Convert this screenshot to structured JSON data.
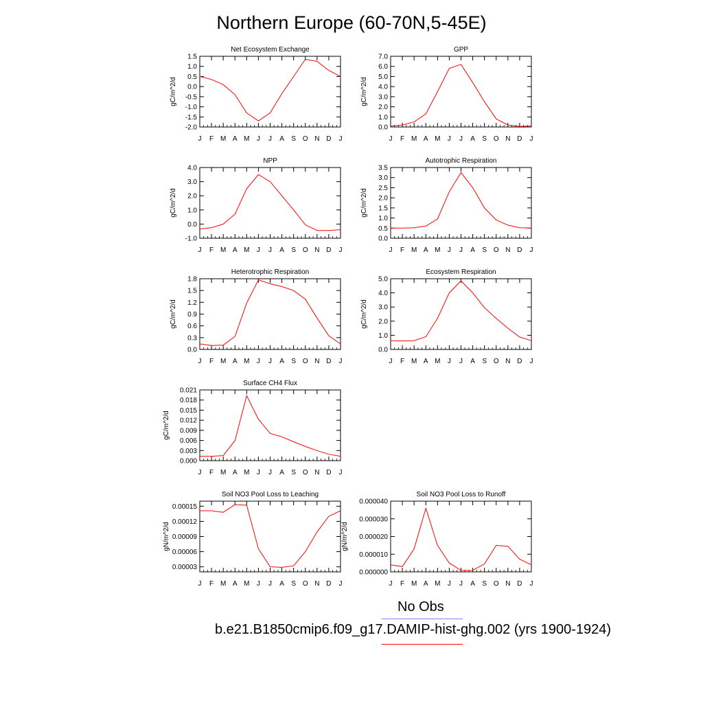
{
  "title": "Northern Europe (60-70N,5-45E)",
  "months": [
    "J",
    "F",
    "M",
    "A",
    "M",
    "J",
    "J",
    "A",
    "S",
    "O",
    "N",
    "D",
    "J"
  ],
  "legend": {
    "obs_label": "No Obs",
    "obs_color": "#8080ff",
    "model_label": "b.e21.B1850cmip6.f09_g17.DAMIP-hist-ghg.002 (yrs 1900-1924)",
    "model_color": "#ff0000"
  },
  "chart_data": [
    {
      "type": "line",
      "title": "Net Ecosystem Exchange",
      "ylabel": "gC/m^2/d",
      "ylim": [
        -2.0,
        1.5
      ],
      "yticks": [
        "1.5",
        "1.0",
        "0.5",
        "0.0",
        "-0.5",
        "-1.0",
        "-1.5",
        "-2.0"
      ],
      "x": [
        1,
        2,
        3,
        4,
        5,
        6,
        7,
        8,
        9,
        10,
        11,
        12,
        13
      ],
      "series": [
        {
          "color": "#ff0000",
          "values": [
            0.5,
            0.35,
            0.1,
            -0.4,
            -1.3,
            -1.7,
            -1.3,
            -0.35,
            0.5,
            1.35,
            1.25,
            0.8,
            0.5
          ]
        }
      ]
    },
    {
      "type": "line",
      "title": "GPP",
      "ylabel": "gC/m^2/d",
      "ylim": [
        0.0,
        7.0
      ],
      "yticks": [
        "7.0",
        "6.0",
        "5.0",
        "4.0",
        "3.0",
        "2.0",
        "1.0",
        "0.0"
      ],
      "x": [
        1,
        2,
        3,
        4,
        5,
        6,
        7,
        8,
        9,
        10,
        11,
        12,
        13
      ],
      "series": [
        {
          "color": "#ff0000",
          "values": [
            0.1,
            0.2,
            0.5,
            1.3,
            3.5,
            5.8,
            6.2,
            4.4,
            2.5,
            0.8,
            0.2,
            0.05,
            0.1
          ]
        }
      ]
    },
    {
      "type": "line",
      "title": "NPP",
      "ylabel": "gC/m^2/d",
      "ylim": [
        -1.0,
        4.0
      ],
      "yticks": [
        "4.0",
        "3.0",
        "2.0",
        "1.0",
        "0.0",
        "-1.0"
      ],
      "x": [
        1,
        2,
        3,
        4,
        5,
        6,
        7,
        8,
        9,
        10,
        11,
        12,
        13
      ],
      "series": [
        {
          "color": "#ff0000",
          "values": [
            -0.35,
            -0.25,
            0.0,
            0.7,
            2.5,
            3.5,
            3.0,
            2.0,
            1.0,
            -0.05,
            -0.45,
            -0.45,
            -0.4
          ]
        }
      ]
    },
    {
      "type": "line",
      "title": "Autotrophic Respiration",
      "ylabel": "gC/m^2/d",
      "ylim": [
        0.0,
        3.5
      ],
      "yticks": [
        "3.5",
        "3.0",
        "2.5",
        "2.0",
        "1.5",
        "1.0",
        "0.5",
        "0.0"
      ],
      "x": [
        1,
        2,
        3,
        4,
        5,
        6,
        7,
        8,
        9,
        10,
        11,
        12,
        13
      ],
      "series": [
        {
          "color": "#ff0000",
          "values": [
            0.5,
            0.5,
            0.52,
            0.6,
            0.95,
            2.3,
            3.25,
            2.5,
            1.5,
            0.9,
            0.65,
            0.52,
            0.5
          ]
        }
      ]
    },
    {
      "type": "line",
      "title": "Heterotrophic Respiration",
      "ylabel": "gC/m^2/d",
      "ylim": [
        0.0,
        1.8
      ],
      "yticks": [
        "1.8",
        "1.5",
        "1.2",
        "0.9",
        "0.6",
        "0.3",
        "0.0"
      ],
      "x": [
        1,
        2,
        3,
        4,
        5,
        6,
        7,
        8,
        9,
        10,
        11,
        12,
        13
      ],
      "series": [
        {
          "color": "#ff0000",
          "values": [
            0.14,
            0.1,
            0.11,
            0.33,
            1.18,
            1.77,
            1.67,
            1.6,
            1.5,
            1.28,
            0.8,
            0.35,
            0.14
          ]
        }
      ]
    },
    {
      "type": "line",
      "title": "Ecosystem Respiration",
      "ylabel": "gC/m^2/d",
      "ylim": [
        0.0,
        5.0
      ],
      "yticks": [
        "5.0",
        "4.0",
        "3.0",
        "2.0",
        "1.0",
        "0.0"
      ],
      "x": [
        1,
        2,
        3,
        4,
        5,
        6,
        7,
        8,
        9,
        10,
        11,
        12,
        13
      ],
      "series": [
        {
          "color": "#ff0000",
          "values": [
            0.62,
            0.6,
            0.62,
            0.9,
            2.2,
            4.0,
            4.85,
            4.0,
            2.95,
            2.2,
            1.5,
            0.88,
            0.62
          ]
        }
      ]
    },
    {
      "type": "line",
      "title": "Surface CH4 Flux",
      "ylabel": "gC/m^2/d",
      "ylim": [
        0.0,
        0.021
      ],
      "yticks": [
        "0.021",
        "0.018",
        "0.015",
        "0.012",
        "0.009",
        "0.006",
        "0.003",
        "0.000"
      ],
      "x": [
        1,
        2,
        3,
        4,
        5,
        6,
        7,
        8,
        9,
        10,
        11,
        12,
        13
      ],
      "series": [
        {
          "color": "#ff0000",
          "values": [
            0.0013,
            0.0013,
            0.0015,
            0.006,
            0.0193,
            0.0123,
            0.0081,
            0.0071,
            0.0056,
            0.0042,
            0.003,
            0.0019,
            0.0013
          ]
        }
      ]
    },
    {
      "type": "line",
      "title": "Soil NO3 Pool Loss to Leaching",
      "ylabel": "gN/m^2/d",
      "ylim": [
        2e-05,
        0.00016
      ],
      "yticks": [
        "0.00015",
        "0.00012",
        "0.00009",
        "0.00006",
        "0.00003"
      ],
      "ytick_values": [
        0.00015,
        0.00012,
        9e-05,
        6e-05,
        3e-05
      ],
      "x": [
        1,
        2,
        3,
        4,
        5,
        6,
        7,
        8,
        9,
        10,
        11,
        12,
        13
      ],
      "series": [
        {
          "color": "#ff0000",
          "values": [
            0.000141,
            0.000141,
            0.000138,
            0.000153,
            0.000152,
            6.6e-05,
            3e-05,
            2.9e-05,
            3.2e-05,
            6e-05,
            9.9e-05,
            0.00013,
            0.000141
          ]
        }
      ]
    },
    {
      "type": "line",
      "title": "Soil NO3 Pool Loss to Runoff",
      "ylabel": "gN/m^2/d",
      "ylim": [
        0.0,
        4e-05
      ],
      "yticks": [
        "0.000040",
        "0.000030",
        "0.000020",
        "0.000010",
        "0.000000"
      ],
      "x": [
        1,
        2,
        3,
        4,
        5,
        6,
        7,
        8,
        9,
        10,
        11,
        12,
        13
      ],
      "series": [
        {
          "color": "#ff0000",
          "values": [
            4e-06,
            3e-06,
            1.3e-05,
            3.6e-05,
            1.5e-05,
            5e-06,
            8e-07,
            9e-07,
            4.5e-06,
            1.5e-05,
            1.45e-05,
            7.2e-06,
            4e-06
          ]
        }
      ]
    }
  ]
}
